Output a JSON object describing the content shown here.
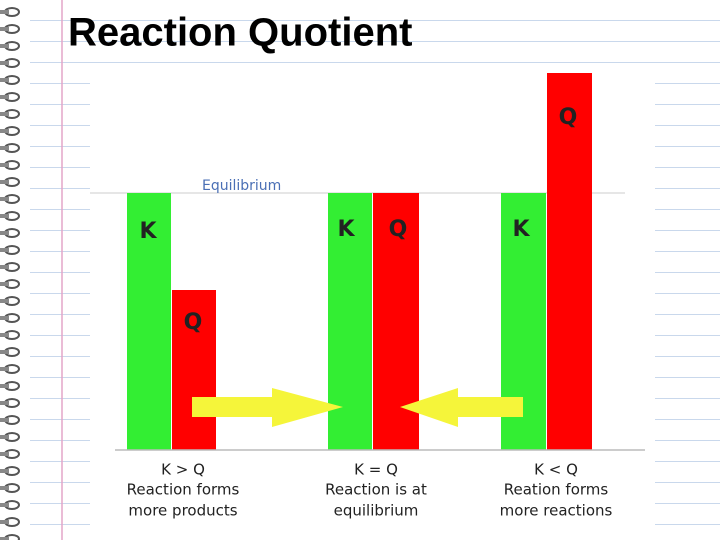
{
  "title": "Reaction Quotient",
  "equilibrium_label": "Equilibrium",
  "groups": [
    {
      "bar_labels": [
        "K",
        "Q"
      ],
      "caption": [
        "K > Q",
        "Reaction forms",
        "more products"
      ]
    },
    {
      "bar_labels": [
        "K",
        "Q"
      ],
      "caption": [
        "K = Q",
        "Reaction is at",
        "equilibrium"
      ]
    },
    {
      "bar_labels": [
        "K",
        "Q"
      ],
      "caption": [
        "K < Q",
        "Reation forms",
        "more reactions"
      ]
    }
  ]
}
